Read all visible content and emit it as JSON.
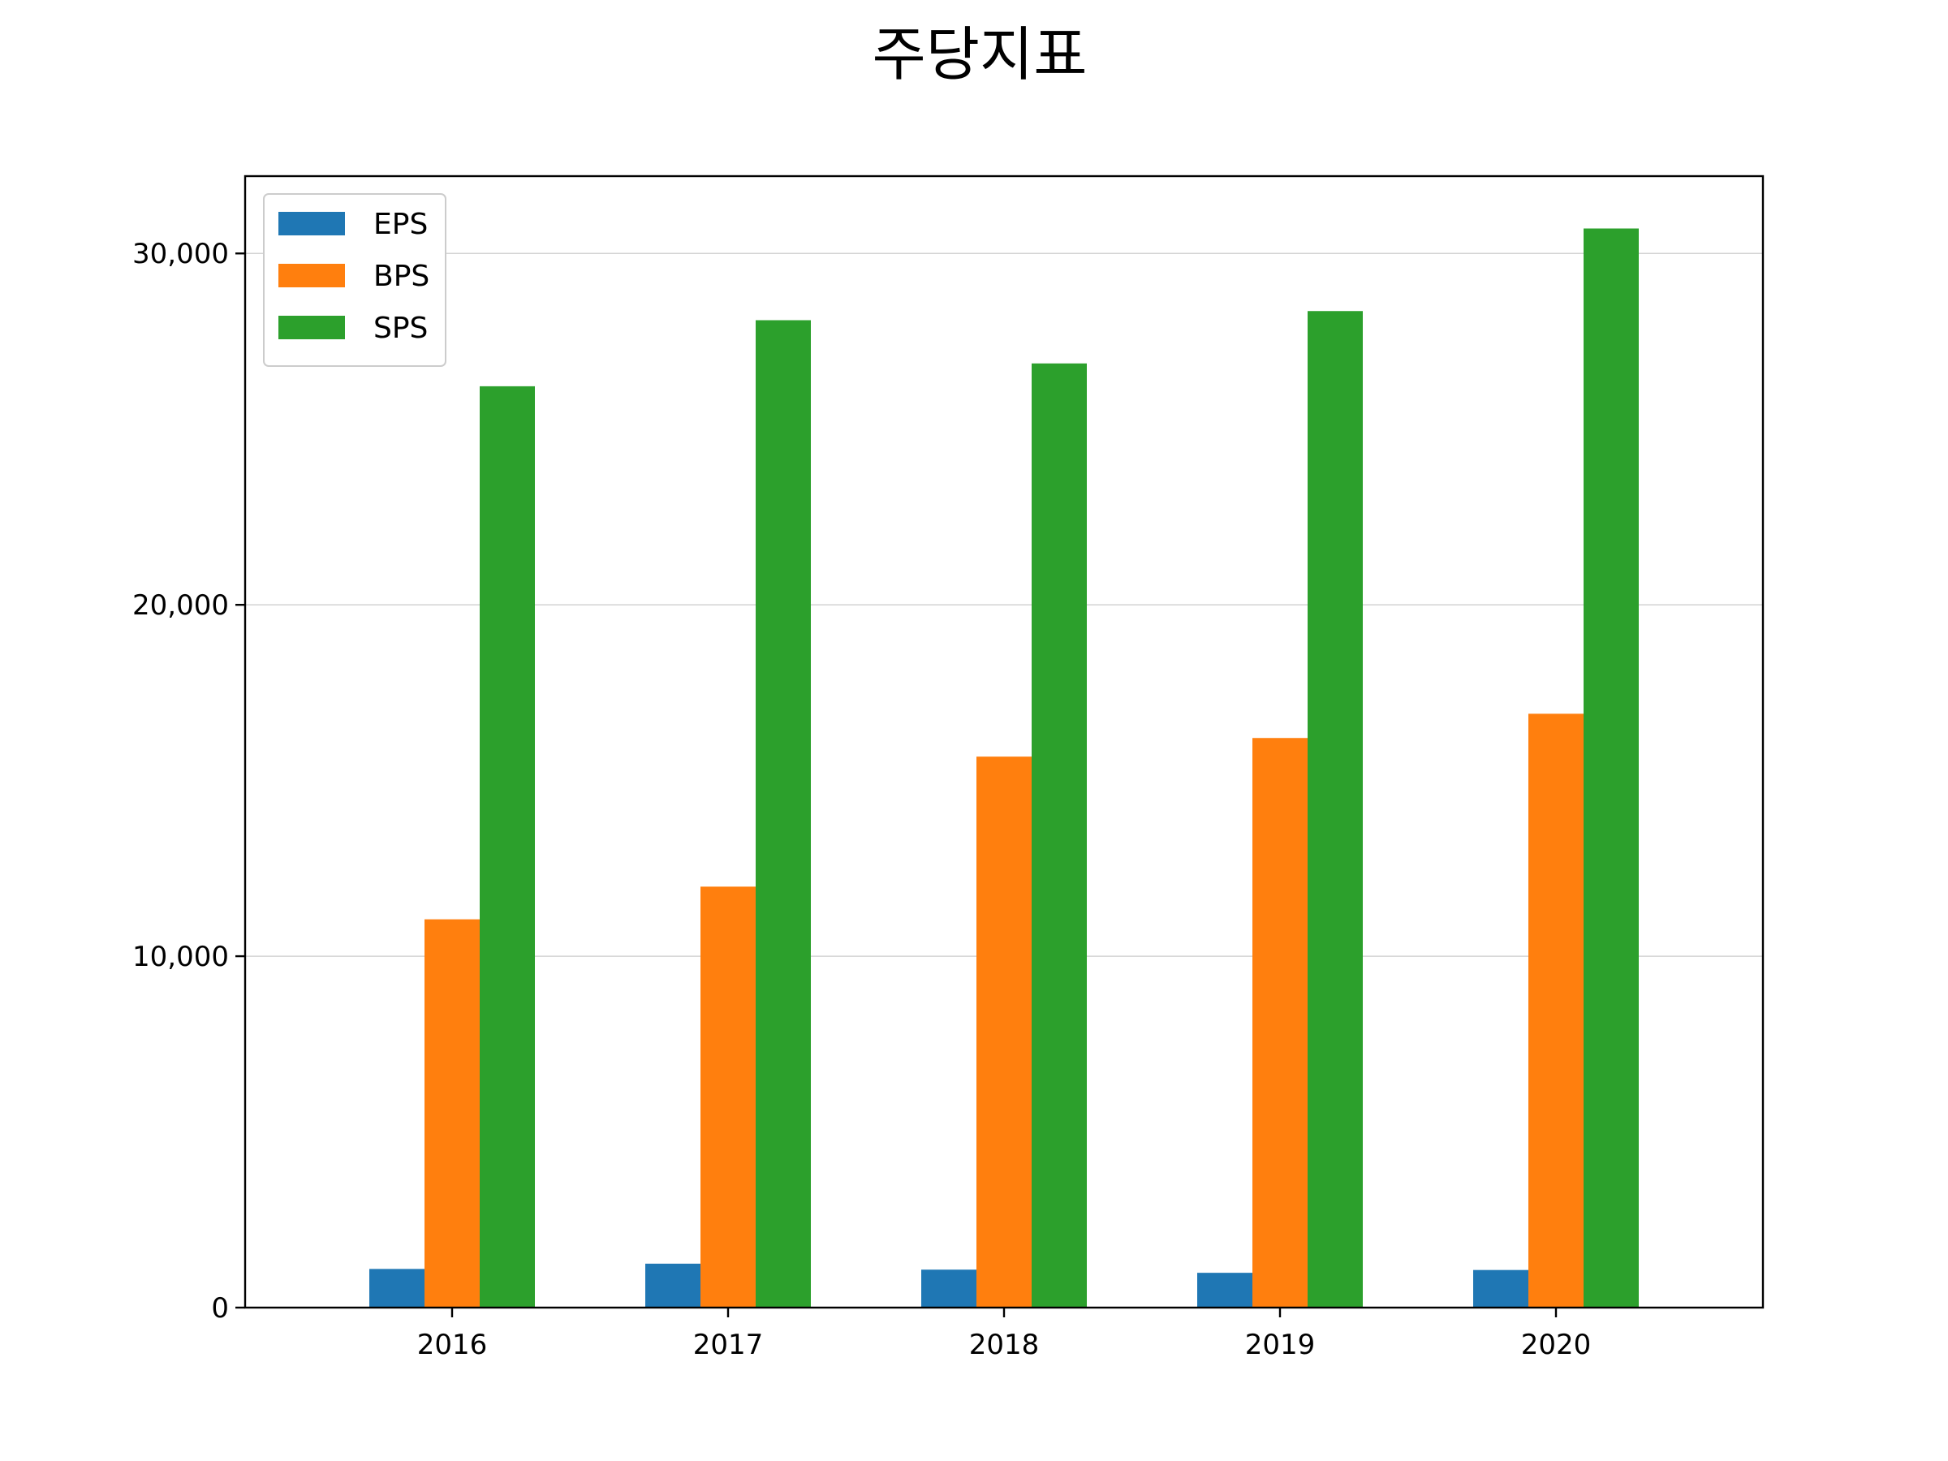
{
  "chart_data": {
    "type": "bar",
    "title": "주당지표",
    "xlabel": "",
    "ylabel": "",
    "categories": [
      "2016",
      "2017",
      "2018",
      "2019",
      "2020"
    ],
    "series": [
      {
        "name": "EPS",
        "color": "#1f77b4",
        "values": [
          1100,
          1250,
          1080,
          990,
          1070
        ]
      },
      {
        "name": "BPS",
        "color": "#ff7f0e",
        "values": [
          11050,
          11980,
          15680,
          16210,
          16900
        ]
      },
      {
        "name": "SPS",
        "color": "#2ca02c",
        "values": [
          26220,
          28100,
          26870,
          28360,
          30710
        ]
      }
    ],
    "ylim": [
      0,
      32200
    ],
    "yticks": [
      0,
      10000,
      20000,
      30000
    ],
    "ytick_labels": [
      "0",
      "10,000",
      "20,000",
      "30,000"
    ],
    "grid": "y-major",
    "legend_position": "top-left"
  }
}
